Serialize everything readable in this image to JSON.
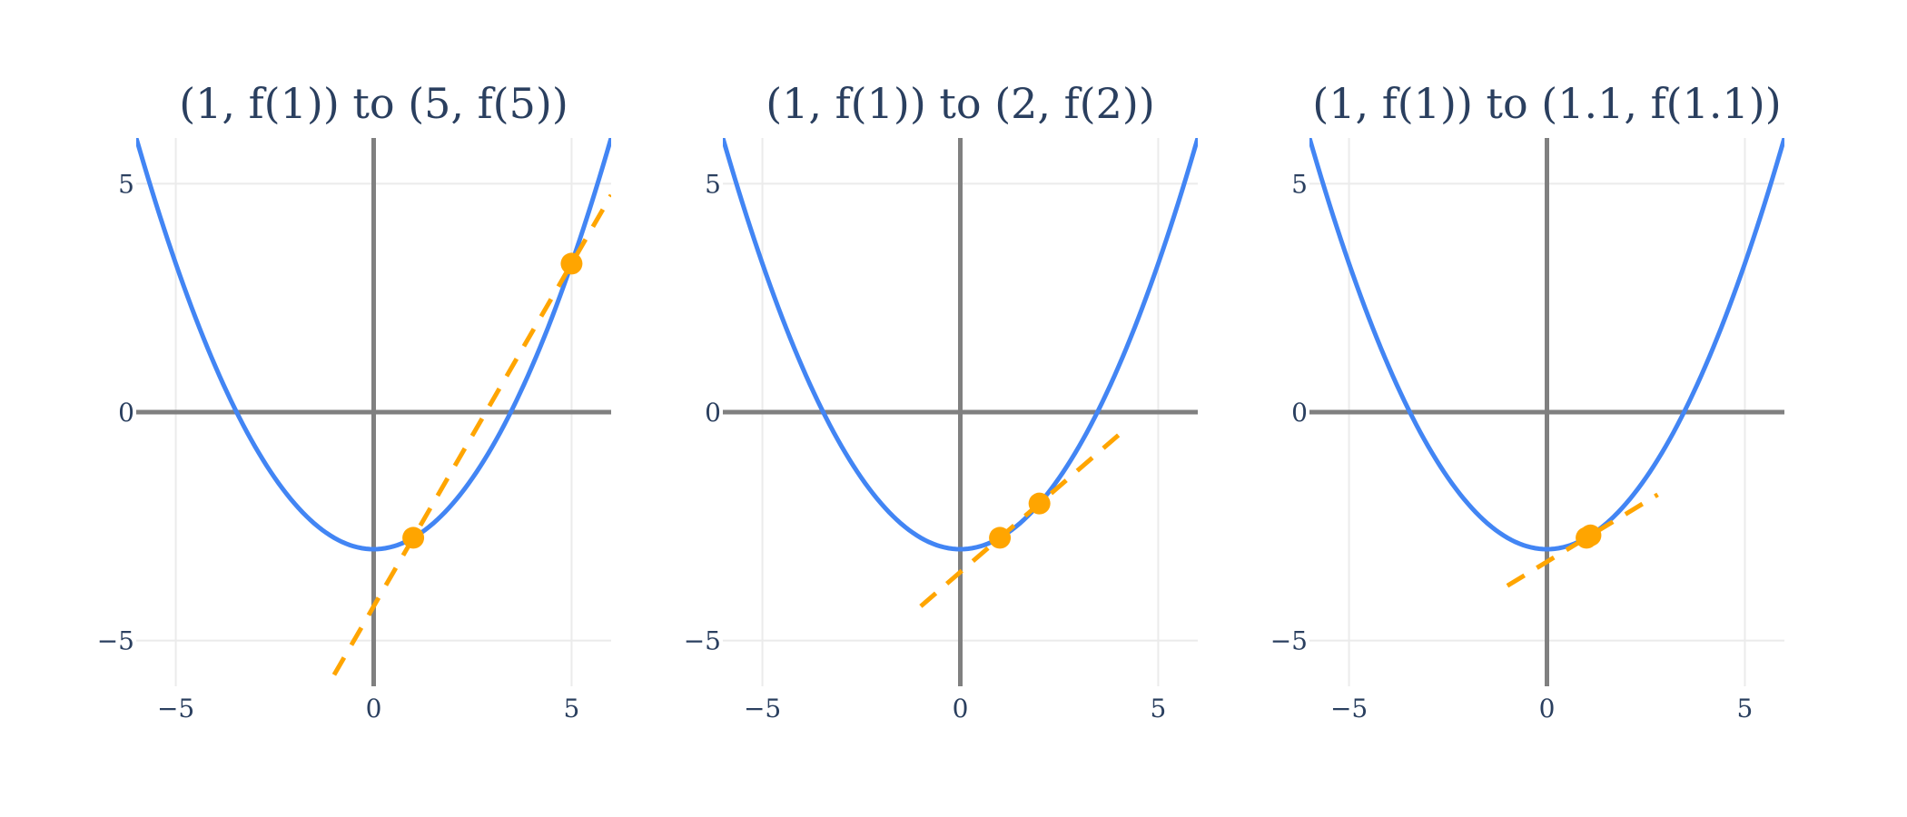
{
  "colors": {
    "curve": "#4285f4",
    "secant": "#ffa500",
    "axis_line": "#808080",
    "grid": "#ebebeb",
    "text": "#2a3f5f"
  },
  "chart_data": [
    {
      "type": "line",
      "title": "(1, f(1)) to (5, f(5))",
      "xlim": [
        -6,
        6
      ],
      "ylim": [
        -6,
        6
      ],
      "x_ticks": [
        -5,
        0,
        5
      ],
      "y_ticks": [
        -5,
        0,
        5
      ],
      "x_tick_labels": [
        "−5",
        "0",
        "5"
      ],
      "y_tick_labels": [
        "−5",
        "0",
        "5"
      ],
      "grid": true,
      "curve": {
        "function": "0.25x^2 - 3",
        "x_range": [
          -6,
          6
        ]
      },
      "points": [
        {
          "x": 1,
          "y": -2.75
        },
        {
          "x": 5,
          "y": 3.25
        }
      ],
      "secant": {
        "slope": 1.5,
        "x_range": [
          -1,
          6
        ]
      }
    },
    {
      "type": "line",
      "title": "(1, f(1)) to (2, f(2))",
      "xlim": [
        -6,
        6
      ],
      "ylim": [
        -6,
        6
      ],
      "x_ticks": [
        -5,
        0,
        5
      ],
      "y_ticks": [
        -5,
        0,
        5
      ],
      "x_tick_labels": [
        "−5",
        "0",
        "5"
      ],
      "y_tick_labels": [
        "−5",
        "0",
        "5"
      ],
      "grid": true,
      "curve": {
        "function": "0.25x^2 - 3",
        "x_range": [
          -6,
          6
        ]
      },
      "points": [
        {
          "x": 1,
          "y": -2.75
        },
        {
          "x": 2,
          "y": -2
        }
      ],
      "secant": {
        "slope": 0.75,
        "x_range": [
          -1,
          4
        ]
      }
    },
    {
      "type": "line",
      "title": "(1, f(1)) to (1.1, f(1.1))",
      "xlim": [
        -6,
        6
      ],
      "ylim": [
        -6,
        6
      ],
      "x_ticks": [
        -5,
        0,
        5
      ],
      "y_ticks": [
        -5,
        0,
        5
      ],
      "x_tick_labels": [
        "−5",
        "0",
        "5"
      ],
      "y_tick_labels": [
        "−5",
        "0",
        "5"
      ],
      "grid": true,
      "curve": {
        "function": "0.25x^2 - 3",
        "x_range": [
          -6,
          6
        ]
      },
      "points": [
        {
          "x": 1,
          "y": -2.75
        },
        {
          "x": 1.1,
          "y": -2.6975
        }
      ],
      "secant": {
        "slope": 0.525,
        "x_range": [
          -1,
          2.8
        ]
      }
    }
  ]
}
